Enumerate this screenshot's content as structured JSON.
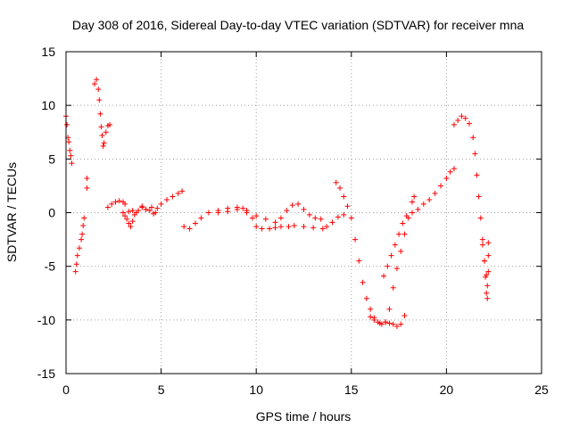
{
  "chart_data": {
    "type": "scatter",
    "title": "Day 308 of 2016, Sidereal Day-to-day VTEC variation (SDTVAR) for receiver mna",
    "xlabel": "GPS time / hours",
    "ylabel": "SDTVAR / TECUs",
    "xlim": [
      0,
      25
    ],
    "ylim": [
      -15,
      15
    ],
    "x_ticks": [
      0,
      5,
      10,
      15,
      20,
      25
    ],
    "y_ticks": [
      -15,
      -10,
      -5,
      0,
      5,
      10,
      15
    ],
    "x_tick_labels": [
      "0",
      "5",
      "10",
      "15",
      "20",
      "25"
    ],
    "y_tick_labels": [
      "-15",
      "-10",
      "-5",
      "0",
      "5",
      "10",
      "15"
    ],
    "grid": true,
    "marker": "+",
    "color": "#ff0000",
    "segments": [
      [
        [
          0.0,
          9.0
        ],
        [
          0.05,
          8.2
        ],
        [
          0.1,
          7.0
        ],
        [
          0.15,
          6.6
        ],
        [
          0.2,
          5.8
        ],
        [
          0.25,
          5.3
        ],
        [
          0.3,
          4.6
        ]
      ],
      [
        [
          0.5,
          -5.5
        ],
        [
          0.55,
          -4.8
        ],
        [
          0.6,
          -4.0
        ],
        [
          0.7,
          -3.3
        ],
        [
          0.8,
          -2.5
        ],
        [
          0.85,
          -2.0
        ],
        [
          0.9,
          -1.2
        ],
        [
          0.95,
          -0.5
        ]
      ],
      [
        [
          1.1,
          3.2
        ],
        [
          1.1,
          2.3
        ]
      ],
      [
        [
          1.5,
          12.0
        ],
        [
          1.6,
          12.4
        ],
        [
          1.7,
          11.5
        ],
        [
          1.75,
          10.5
        ],
        [
          1.8,
          9.2
        ],
        [
          1.85,
          8.0
        ],
        [
          1.9,
          7.2
        ],
        [
          1.95,
          6.2
        ],
        [
          2.0,
          6.5
        ],
        [
          2.1,
          7.5
        ],
        [
          2.2,
          8.1
        ],
        [
          2.3,
          8.2
        ]
      ],
      [
        [
          2.2,
          0.5
        ],
        [
          2.4,
          0.8
        ],
        [
          2.6,
          1.0
        ],
        [
          2.8,
          1.1
        ],
        [
          3.0,
          1.0
        ],
        [
          3.1,
          0.8
        ]
      ],
      [
        [
          3.0,
          0.0
        ],
        [
          3.1,
          -0.3
        ],
        [
          3.2,
          -0.6
        ],
        [
          3.3,
          -1.0
        ],
        [
          3.4,
          -1.3
        ],
        [
          3.5,
          -0.8
        ],
        [
          3.6,
          -0.2
        ],
        [
          3.8,
          0.2
        ],
        [
          4.0,
          0.6
        ],
        [
          4.2,
          0.3
        ],
        [
          4.5,
          0.5
        ],
        [
          4.7,
          0.0
        ],
        [
          4.8,
          0.4
        ],
        [
          5.0,
          0.8
        ],
        [
          5.3,
          1.2
        ],
        [
          5.6,
          1.5
        ],
        [
          5.9,
          1.8
        ],
        [
          6.1,
          2.0
        ]
      ],
      [
        [
          3.3,
          0.1
        ],
        [
          3.5,
          0.2
        ],
        [
          3.7,
          0.0
        ],
        [
          4.0,
          0.5
        ],
        [
          4.2,
          0.3
        ],
        [
          4.4,
          0.2
        ],
        [
          4.6,
          -0.1
        ]
      ],
      [
        [
          6.2,
          -1.3
        ],
        [
          6.5,
          -1.5
        ],
        [
          6.8,
          -1.0
        ],
        [
          7.1,
          -0.5
        ],
        [
          7.5,
          0.0
        ],
        [
          8.0,
          0.2
        ],
        [
          8.5,
          0.4
        ],
        [
          9.0,
          0.5
        ],
        [
          9.3,
          0.4
        ],
        [
          9.5,
          0.2
        ]
      ],
      [
        [
          8.0,
          0.0
        ],
        [
          8.5,
          0.1
        ],
        [
          9.0,
          0.3
        ],
        [
          9.5,
          0.0
        ],
        [
          9.8,
          -0.5
        ],
        [
          10.0,
          -1.3
        ],
        [
          10.3,
          -1.5
        ],
        [
          10.7,
          -1.5
        ],
        [
          11.0,
          -1.4
        ],
        [
          11.3,
          -1.3
        ],
        [
          11.7,
          -1.3
        ],
        [
          12.0,
          -1.2
        ],
        [
          12.5,
          -1.3
        ],
        [
          13.0,
          -1.4
        ],
        [
          13.5,
          -1.5
        ],
        [
          13.7,
          -1.3
        ],
        [
          14.0,
          -0.9
        ],
        [
          14.3,
          -0.4
        ],
        [
          14.6,
          -0.2
        ]
      ],
      [
        [
          9.5,
          0.2
        ],
        [
          10.0,
          -0.3
        ],
        [
          10.5,
          -0.6
        ],
        [
          11.0,
          -0.9
        ],
        [
          11.3,
          -0.5
        ],
        [
          11.6,
          0.2
        ],
        [
          11.9,
          0.7
        ],
        [
          12.2,
          0.8
        ],
        [
          12.5,
          0.3
        ],
        [
          12.8,
          -0.2
        ],
        [
          13.1,
          -0.5
        ],
        [
          13.4,
          -0.6
        ]
      ],
      [
        [
          14.2,
          2.8
        ],
        [
          14.4,
          2.3
        ],
        [
          14.6,
          1.5
        ],
        [
          14.8,
          0.6
        ],
        [
          15.0,
          -0.5
        ],
        [
          15.2,
          -2.5
        ],
        [
          15.4,
          -4.5
        ],
        [
          15.6,
          -6.5
        ],
        [
          15.8,
          -8.0
        ],
        [
          16.0,
          -9.0
        ],
        [
          16.2,
          -9.8
        ],
        [
          16.4,
          -10.2
        ],
        [
          16.6,
          -10.4
        ],
        [
          16.8,
          -10.2
        ],
        [
          17.0,
          -9.0
        ],
        [
          17.2,
          -7.0
        ],
        [
          17.4,
          -5.2
        ],
        [
          17.6,
          -3.6
        ],
        [
          17.8,
          -2.0
        ],
        [
          18.0,
          -0.5
        ],
        [
          18.2,
          1.0
        ],
        [
          18.3,
          1.5
        ]
      ],
      [
        [
          16.7,
          -5.9
        ],
        [
          16.9,
          -5.0
        ],
        [
          17.1,
          -4.0
        ],
        [
          17.3,
          -3.0
        ],
        [
          17.5,
          -2.0
        ],
        [
          17.7,
          -1.0
        ],
        [
          17.9,
          -0.3
        ],
        [
          18.2,
          0.0
        ],
        [
          18.5,
          0.3
        ],
        [
          18.8,
          0.8
        ],
        [
          19.1,
          1.2
        ],
        [
          19.4,
          1.8
        ],
        [
          19.7,
          2.5
        ],
        [
          20.0,
          3.2
        ],
        [
          20.2,
          3.8
        ],
        [
          20.4,
          4.1
        ]
      ],
      [
        [
          16.0,
          -9.7
        ],
        [
          16.2,
          -10.0
        ],
        [
          16.5,
          -10.3
        ],
        [
          16.8,
          -10.2
        ],
        [
          17.0,
          -10.3
        ],
        [
          17.2,
          -10.4
        ],
        [
          17.4,
          -10.6
        ],
        [
          17.6,
          -10.4
        ],
        [
          17.8,
          -9.6
        ]
      ],
      [
        [
          20.4,
          8.2
        ],
        [
          20.6,
          8.6
        ],
        [
          20.8,
          9.0
        ],
        [
          21.0,
          8.8
        ],
        [
          21.2,
          8.3
        ],
        [
          21.4,
          7.0
        ],
        [
          21.5,
          5.5
        ],
        [
          21.6,
          3.5
        ],
        [
          21.7,
          1.5
        ],
        [
          21.8,
          -0.5
        ],
        [
          21.9,
          -2.5
        ],
        [
          22.0,
          -4.5
        ],
        [
          22.05,
          -6.0
        ],
        [
          22.1,
          -7.5
        ],
        [
          22.15,
          -8.0
        ]
      ],
      [
        [
          21.9,
          -3.0
        ],
        [
          22.0,
          -4.5
        ],
        [
          22.1,
          -5.8
        ],
        [
          22.15,
          -6.8
        ],
        [
          22.2,
          -2.8
        ],
        [
          22.2,
          -4.0
        ],
        [
          22.2,
          -5.5
        ]
      ]
    ]
  }
}
